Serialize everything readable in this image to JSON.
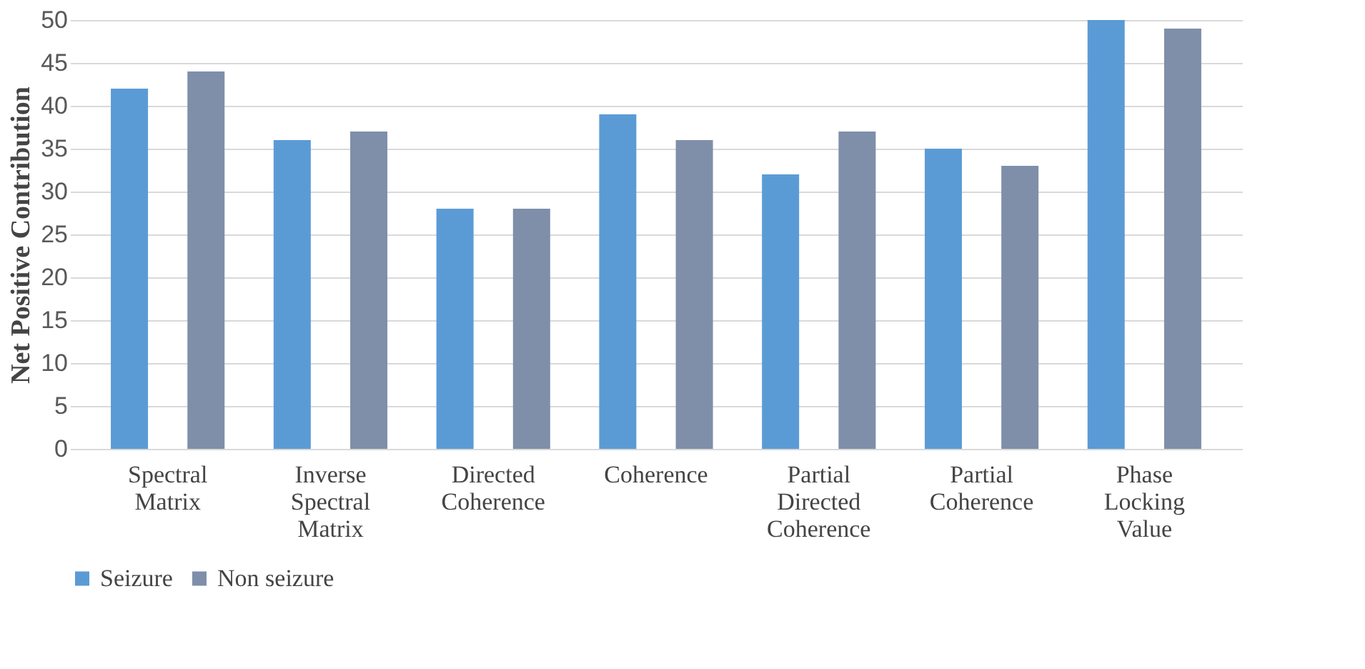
{
  "chart_data": {
    "type": "bar",
    "ylabel": "Net Positive Contribution",
    "categories": [
      "Spectral Matrix",
      "Inverse Spectral Matrix",
      "Directed Coherence",
      "Coherence",
      "Partial Directed Coherence",
      "Partial Coherence",
      "Phase Locking Value"
    ],
    "series": [
      {
        "name": "Seizure",
        "color": "#5b9bd5",
        "values": [
          42,
          36,
          28,
          39,
          32,
          35,
          50
        ]
      },
      {
        "name": "Non seizure",
        "color": "#7f8fa9",
        "values": [
          44,
          37,
          28,
          36,
          37,
          33,
          49
        ]
      }
    ],
    "ylim": [
      0,
      50
    ],
    "yticks": [
      0,
      5,
      10,
      15,
      20,
      25,
      30,
      35,
      40,
      45,
      50
    ],
    "grid": "y",
    "legend": "bottom"
  }
}
